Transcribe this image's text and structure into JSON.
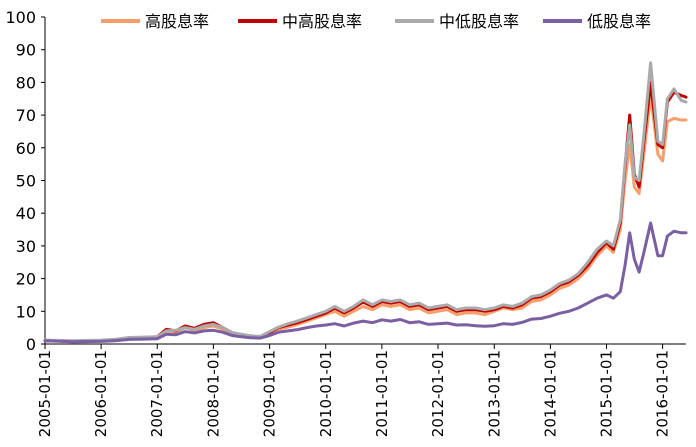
{
  "chart_data": {
    "type": "line",
    "title": "",
    "xlabel": "",
    "ylabel": "",
    "ylim": [
      0,
      100
    ],
    "yticks": [
      0,
      10,
      20,
      30,
      40,
      50,
      60,
      70,
      80,
      90,
      100
    ],
    "xticks": [
      "2005-01-01",
      "2006-01-01",
      "2007-01-01",
      "2008-01-01",
      "2009-01-01",
      "2010-01-01",
      "2011-01-01",
      "2012-01-01",
      "2013-01-01",
      "2014-01-01",
      "2015-01-01",
      "2016-01-01"
    ],
    "xlim": [
      "2005-01-01",
      "2016-06-01"
    ],
    "grid": false,
    "legend_position": "top",
    "x": [
      "2005-01-01",
      "2005-07-01",
      "2006-01-01",
      "2006-04-01",
      "2006-07-01",
      "2006-10-01",
      "2007-01-01",
      "2007-03-01",
      "2007-05-01",
      "2007-07-01",
      "2007-09-01",
      "2007-11-01",
      "2008-01-01",
      "2008-03-01",
      "2008-05-01",
      "2008-07-01",
      "2008-09-01",
      "2008-11-01",
      "2009-01-01",
      "2009-03-01",
      "2009-05-01",
      "2009-07-01",
      "2009-09-01",
      "2009-11-01",
      "2010-01-01",
      "2010-03-01",
      "2010-05-01",
      "2010-07-01",
      "2010-09-01",
      "2010-11-01",
      "2011-01-01",
      "2011-03-01",
      "2011-05-01",
      "2011-07-01",
      "2011-09-01",
      "2011-11-01",
      "2012-01-01",
      "2012-03-01",
      "2012-05-01",
      "2012-07-01",
      "2012-09-01",
      "2012-11-01",
      "2013-01-01",
      "2013-03-01",
      "2013-05-01",
      "2013-07-01",
      "2013-09-01",
      "2013-11-01",
      "2014-01-01",
      "2014-03-01",
      "2014-05-01",
      "2014-07-01",
      "2014-09-01",
      "2014-11-01",
      "2015-01-01",
      "2015-02-15",
      "2015-04-01",
      "2015-05-01",
      "2015-06-01",
      "2015-07-01",
      "2015-08-01",
      "2015-09-01",
      "2015-10-15",
      "2015-12-01",
      "2016-01-01",
      "2016-02-01",
      "2016-03-15",
      "2016-05-01",
      "2016-06-01"
    ],
    "series": [
      {
        "name": "高股息率",
        "color": "#f79f6b",
        "width": 3,
        "values": [
          1,
          0.8,
          1,
          1.2,
          1.8,
          1.9,
          2,
          4,
          3.5,
          5,
          4.2,
          5,
          5.5,
          4.5,
          3,
          2.5,
          2.2,
          2,
          3,
          4.5,
          5.2,
          6,
          7,
          8,
          9,
          10,
          8.5,
          10,
          11.5,
          10.5,
          12,
          11.5,
          12,
          10.5,
          11,
          9.5,
          10,
          10.5,
          9,
          9.5,
          9.5,
          9,
          10,
          11,
          10.5,
          11,
          13,
          13.5,
          15,
          17,
          18,
          20,
          23,
          27,
          30,
          28,
          35,
          50,
          61,
          48,
          46,
          58,
          76,
          58,
          56,
          68,
          69,
          68.5,
          68.5
        ]
      },
      {
        "name": "中高股息率",
        "color": "#c00000",
        "width": 3,
        "values": [
          1,
          0.8,
          1,
          1.2,
          1.8,
          2,
          2.2,
          4.5,
          4,
          5.5,
          4.8,
          6,
          6.5,
          5,
          3.5,
          2.8,
          2.4,
          2.2,
          3.5,
          5,
          5.8,
          6.5,
          7.5,
          8.5,
          9.5,
          11,
          9.5,
          11,
          12.8,
          11.5,
          13,
          12.5,
          13,
          11.5,
          12,
          10.5,
          11,
          11.5,
          10,
          10.5,
          10.5,
          10,
          10.5,
          11.5,
          11,
          12,
          14,
          14.5,
          16,
          18,
          19,
          21,
          24,
          28,
          31,
          29,
          37,
          54,
          70,
          52,
          48,
          62,
          80,
          61,
          60,
          74,
          77,
          76,
          75.5
        ]
      },
      {
        "name": "中低股息率",
        "color": "#aaaaaa",
        "width": 3,
        "values": [
          1.2,
          1,
          1.2,
          1.4,
          2,
          2.1,
          2.2,
          4,
          4.2,
          5,
          4.5,
          5.5,
          6,
          5,
          3.5,
          3,
          2.5,
          2.3,
          3.8,
          5.2,
          6.2,
          7,
          8,
          9,
          10,
          11.5,
          10,
          11.5,
          13.5,
          12,
          13.5,
          13,
          13.5,
          12,
          12.5,
          11,
          11.5,
          12,
          10.5,
          11,
          11,
          10.5,
          11,
          12,
          11.5,
          12.5,
          14.5,
          15,
          16.5,
          18.5,
          19.5,
          21.5,
          25,
          29,
          31.5,
          30,
          38,
          55,
          67,
          51,
          50,
          64,
          86,
          62,
          61,
          75,
          78,
          74.5,
          74
        ]
      },
      {
        "name": "低股息率",
        "color": "#7b5fa3",
        "width": 3,
        "values": [
          1,
          0.7,
          0.8,
          1,
          1.4,
          1.5,
          1.6,
          3,
          2.8,
          3.8,
          3.4,
          4,
          4.2,
          3.6,
          2.6,
          2.2,
          1.9,
          1.8,
          2.6,
          3.6,
          4,
          4.4,
          5,
          5.5,
          5.8,
          6.2,
          5.5,
          6.4,
          7,
          6.5,
          7.4,
          7,
          7.5,
          6.5,
          6.8,
          6,
          6.2,
          6.4,
          5.8,
          5.9,
          5.6,
          5.4,
          5.6,
          6.2,
          6,
          6.6,
          7.6,
          7.8,
          8.5,
          9.4,
          10,
          11,
          12.5,
          14,
          15,
          14,
          16,
          24,
          34,
          26,
          22,
          28,
          37,
          27,
          27,
          33,
          34.5,
          34,
          34
        ]
      }
    ]
  }
}
